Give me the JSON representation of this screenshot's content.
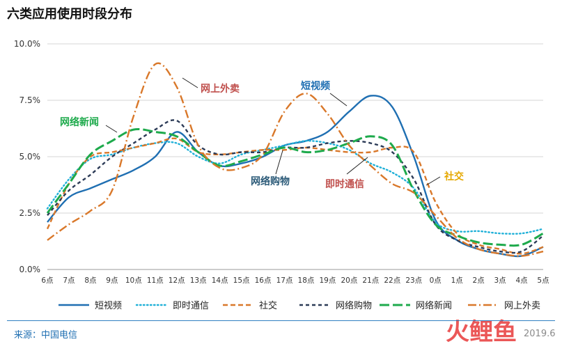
{
  "title": "六类应用使用时段分布",
  "source": "来源：中国电信",
  "watermark": "火鲤鱼",
  "date": "2019.6",
  "chart_data": {
    "type": "line",
    "categories": [
      "6点",
      "7点",
      "8点",
      "9点",
      "10点",
      "11点",
      "12点",
      "13点",
      "14点",
      "15点",
      "16点",
      "17点",
      "18点",
      "19点",
      "20点",
      "21点",
      "22点",
      "23点",
      "0点",
      "1点",
      "2点",
      "3点",
      "4点",
      "5点"
    ],
    "y_ticks": [
      "0.0%",
      "2.5%",
      "5.0%",
      "7.5%",
      "10.0%"
    ],
    "ylim": [
      0,
      10
    ],
    "grid": true,
    "legend_position": "bottom",
    "series": [
      {
        "name": "短视频",
        "color": "#1f6fb2",
        "dash": "solid",
        "values": [
          2.1,
          3.2,
          3.6,
          4.0,
          4.4,
          5.0,
          6.1,
          5.2,
          4.6,
          4.7,
          5.0,
          5.5,
          5.7,
          6.1,
          7.0,
          7.7,
          7.2,
          5.0,
          2.2,
          1.3,
          0.9,
          0.7,
          0.6,
          1.0
        ]
      },
      {
        "name": "即时通信",
        "color": "#1fb0d8",
        "dash": "dotted",
        "values": [
          2.7,
          4.0,
          4.9,
          5.1,
          5.4,
          5.6,
          5.6,
          5.0,
          4.7,
          5.1,
          5.3,
          5.5,
          5.7,
          5.6,
          5.3,
          4.7,
          4.3,
          3.6,
          2.1,
          1.7,
          1.7,
          1.6,
          1.6,
          1.8
        ]
      },
      {
        "name": "社交",
        "color": "#d9782a",
        "dash": "dashed",
        "values": [
          1.8,
          3.8,
          5.0,
          5.2,
          5.4,
          5.6,
          5.8,
          5.2,
          5.1,
          5.2,
          5.3,
          5.3,
          5.4,
          5.3,
          5.2,
          5.2,
          5.4,
          5.2,
          3.0,
          1.6,
          1.1,
          0.9,
          0.7,
          1.0
        ]
      },
      {
        "name": "网络购物",
        "color": "#2b3a56",
        "dash": "dashed-short",
        "values": [
          2.4,
          3.5,
          4.2,
          5.0,
          5.6,
          6.2,
          6.6,
          5.5,
          5.1,
          5.2,
          5.2,
          5.4,
          5.4,
          5.6,
          5.7,
          5.6,
          5.2,
          4.0,
          2.0,
          1.3,
          1.0,
          0.8,
          0.8,
          1.5
        ]
      },
      {
        "name": "网络新闻",
        "color": "#1eaa4c",
        "dash": "long-dash",
        "values": [
          2.5,
          3.8,
          5.1,
          5.7,
          6.2,
          6.1,
          5.9,
          5.2,
          4.6,
          4.8,
          5.1,
          5.4,
          5.2,
          5.3,
          5.6,
          5.9,
          5.5,
          3.5,
          2.0,
          1.5,
          1.2,
          1.1,
          1.1,
          1.6
        ]
      },
      {
        "name": "网上外卖",
        "color": "#d9782a",
        "dash": "dash-dot",
        "values": [
          1.3,
          2.0,
          2.6,
          3.5,
          6.8,
          9.1,
          8.1,
          5.5,
          4.5,
          4.5,
          5.1,
          7.0,
          7.8,
          6.9,
          5.5,
          4.6,
          3.8,
          3.4,
          2.4,
          1.4,
          0.9,
          0.7,
          0.6,
          0.8
        ]
      }
    ],
    "annotations": [
      {
        "text": "网上外卖",
        "color": "#c0504d"
      },
      {
        "text": "短视频",
        "color": "#1f6fb2"
      },
      {
        "text": "网络新闻",
        "color": "#1eaa4c"
      },
      {
        "text": "网络购物",
        "color": "#2b5a78"
      },
      {
        "text": "即时通信",
        "color": "#c0504d"
      },
      {
        "text": "社交",
        "color": "#e5a800"
      }
    ]
  }
}
